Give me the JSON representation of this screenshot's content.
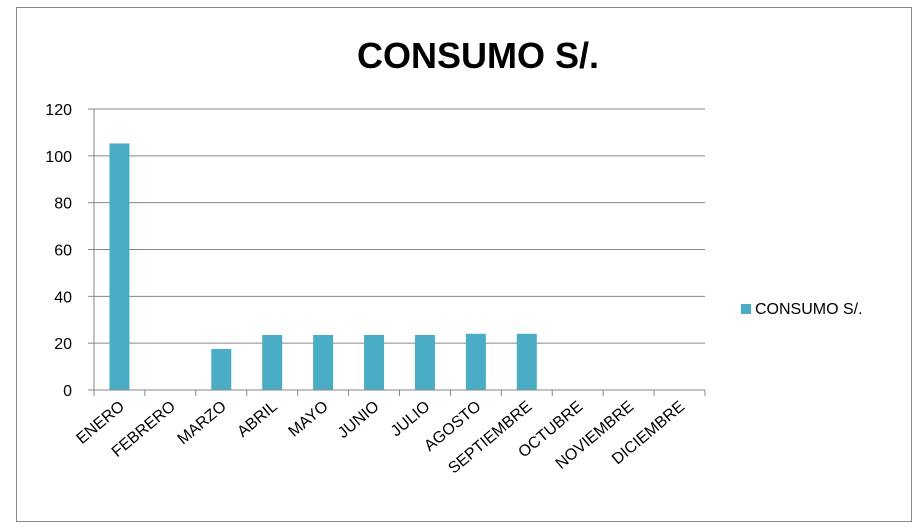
{
  "chart_data": {
    "type": "bar",
    "title": "CONSUMO S/.",
    "categories": [
      "ENERO",
      "FEBRERO",
      "MARZO",
      "ABRIL",
      "MAYO",
      "JUNIO",
      "JULIO",
      "AGOSTO",
      "SEPTIEMBRE",
      "OCTUBRE",
      "NOVIEMBRE",
      "DICIEMBRE"
    ],
    "series": [
      {
        "name": "CONSUMO S/.",
        "values": [
          105.3,
          null,
          17.5,
          23.5,
          23.5,
          23.5,
          23.5,
          24,
          24,
          null,
          null,
          null
        ],
        "color": "#4BACC6"
      }
    ],
    "ylim": [
      0,
      120
    ],
    "yticks": [
      0,
      20,
      40,
      60,
      80,
      100,
      120
    ],
    "grid": true,
    "legend_position": "right",
    "xlabel": "",
    "ylabel": ""
  }
}
